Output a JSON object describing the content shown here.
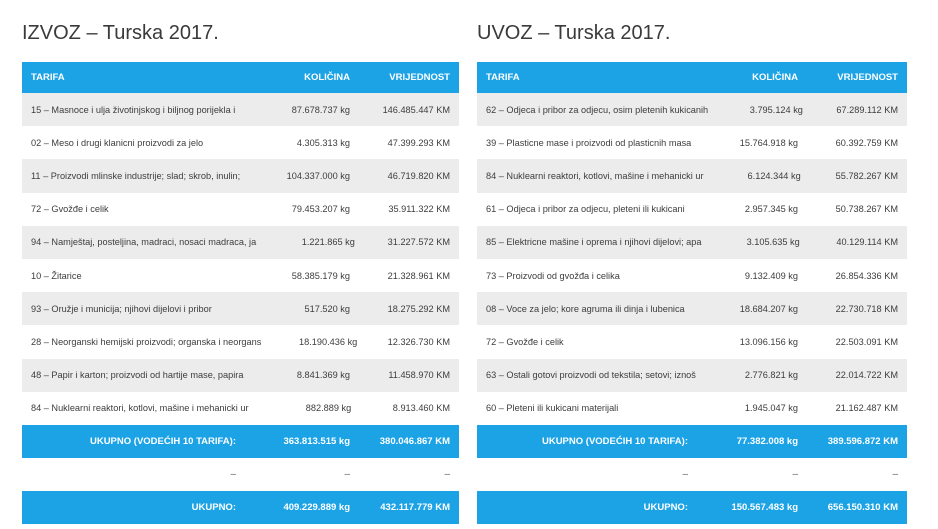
{
  "izvoz": {
    "title": "IZVOZ – Turska 2017.",
    "headers": {
      "tarifa": "TARIFA",
      "kolicina": "KOLIČINA",
      "vrijednost": "VRIJEDNOST"
    },
    "rows": [
      {
        "tarifa": "15 – Masnoce i ulja životinjskog i biljnog porijekla i",
        "kolicina": "87.678.737 kg",
        "vrijednost": "146.485.447 KM"
      },
      {
        "tarifa": "02 – Meso i drugi klanicni proizvodi za jelo",
        "kolicina": "4.305.313 kg",
        "vrijednost": "47.399.293 KM"
      },
      {
        "tarifa": "11 – Proizvodi mlinske industrije; slad; skrob, inulin;",
        "kolicina": "104.337.000 kg",
        "vrijednost": "46.719.820 KM"
      },
      {
        "tarifa": "72 – Gvožđe i celik",
        "kolicina": "79.453.207 kg",
        "vrijednost": "35.911.322 KM"
      },
      {
        "tarifa": "94 – Namještaj, posteljina, madraci, nosaci madraca, ja",
        "kolicina": "1.221.865 kg",
        "vrijednost": "31.227.572 KM"
      },
      {
        "tarifa": "10 – Žitarice",
        "kolicina": "58.385.179 kg",
        "vrijednost": "21.328.961 KM"
      },
      {
        "tarifa": "93 – Oružje i municija; njihovi dijelovi i pribor",
        "kolicina": "517.520 kg",
        "vrijednost": "18.275.292 KM"
      },
      {
        "tarifa": "28 – Neorganski hemijski proizvodi; organska i neorgans",
        "kolicina": "18.190.436 kg",
        "vrijednost": "12.326.730 KM"
      },
      {
        "tarifa": "48 – Papir i karton; proizvodi od hartije mase, papira",
        "kolicina": "8.841.369 kg",
        "vrijednost": "11.458.970 KM"
      },
      {
        "tarifa": "84 – Nuklearni reaktori, kotlovi, mašine i mehanicki ur",
        "kolicina": "882.889 kg",
        "vrijednost": "8.913.460 KM"
      }
    ],
    "top10": {
      "label": "UKUPNO (VODEĆIH 10 TARIFA):",
      "kolicina": "363.813.515 kg",
      "vrijednost": "380.046.867 KM"
    },
    "dash": {
      "tarifa": "–",
      "kolicina": "–",
      "vrijednost": "–"
    },
    "total": {
      "label": "UKUPNO:",
      "kolicina": "409.229.889 kg",
      "vrijednost": "432.117.779 KM"
    }
  },
  "uvoz": {
    "title": "UVOZ – Turska 2017.",
    "headers": {
      "tarifa": "TARIFA",
      "kolicina": "KOLIČINA",
      "vrijednost": "VRIJEDNOST"
    },
    "rows": [
      {
        "tarifa": "62 – Odjeca i pribor za odjecu, osim pletenih kukicanih",
        "kolicina": "3.795.124 kg",
        "vrijednost": "67.289.112 KM"
      },
      {
        "tarifa": "39 – Plasticne mase i proizvodi od plasticnih masa",
        "kolicina": "15.764.918 kg",
        "vrijednost": "60.392.759 KM"
      },
      {
        "tarifa": "84 – Nuklearni reaktori, kotlovi, mašine i mehanicki ur",
        "kolicina": "6.124.344 kg",
        "vrijednost": "55.782.267 KM"
      },
      {
        "tarifa": "61 – Odjeca i pribor za odjecu, pleteni ili kukicani",
        "kolicina": "2.957.345 kg",
        "vrijednost": "50.738.267 KM"
      },
      {
        "tarifa": "85 – Elektricne mašine i oprema i njihovi dijelovi; apa",
        "kolicina": "3.105.635 kg",
        "vrijednost": "40.129.114 KM"
      },
      {
        "tarifa": "73 – Proizvodi od gvožđa i celika",
        "kolicina": "9.132.409 kg",
        "vrijednost": "26.854.336 KM"
      },
      {
        "tarifa": "08 – Voce za jelo; kore agruma ili dinja i lubenica",
        "kolicina": "18.684.207 kg",
        "vrijednost": "22.730.718 KM"
      },
      {
        "tarifa": "72 – Gvožđe i celik",
        "kolicina": "13.096.156 kg",
        "vrijednost": "22.503.091 KM"
      },
      {
        "tarifa": "63 – Ostali gotovi proizvodi od tekstila; setovi; iznoš",
        "kolicina": "2.776.821 kg",
        "vrijednost": "22.014.722 KM"
      },
      {
        "tarifa": "60 – Pleteni ili kukicani materijali",
        "kolicina": "1.945.047 kg",
        "vrijednost": "21.162.487 KM"
      }
    ],
    "top10": {
      "label": "UKUPNO (VODEĆIH 10 TARIFA):",
      "kolicina": "77.382.008 kg",
      "vrijednost": "389.596.872 KM"
    },
    "dash": {
      "tarifa": "–",
      "kolicina": "–",
      "vrijednost": "–"
    },
    "total": {
      "label": "UKUPNO:",
      "kolicina": "150.567.483 kg",
      "vrijednost": "656.150.310 KM"
    }
  }
}
